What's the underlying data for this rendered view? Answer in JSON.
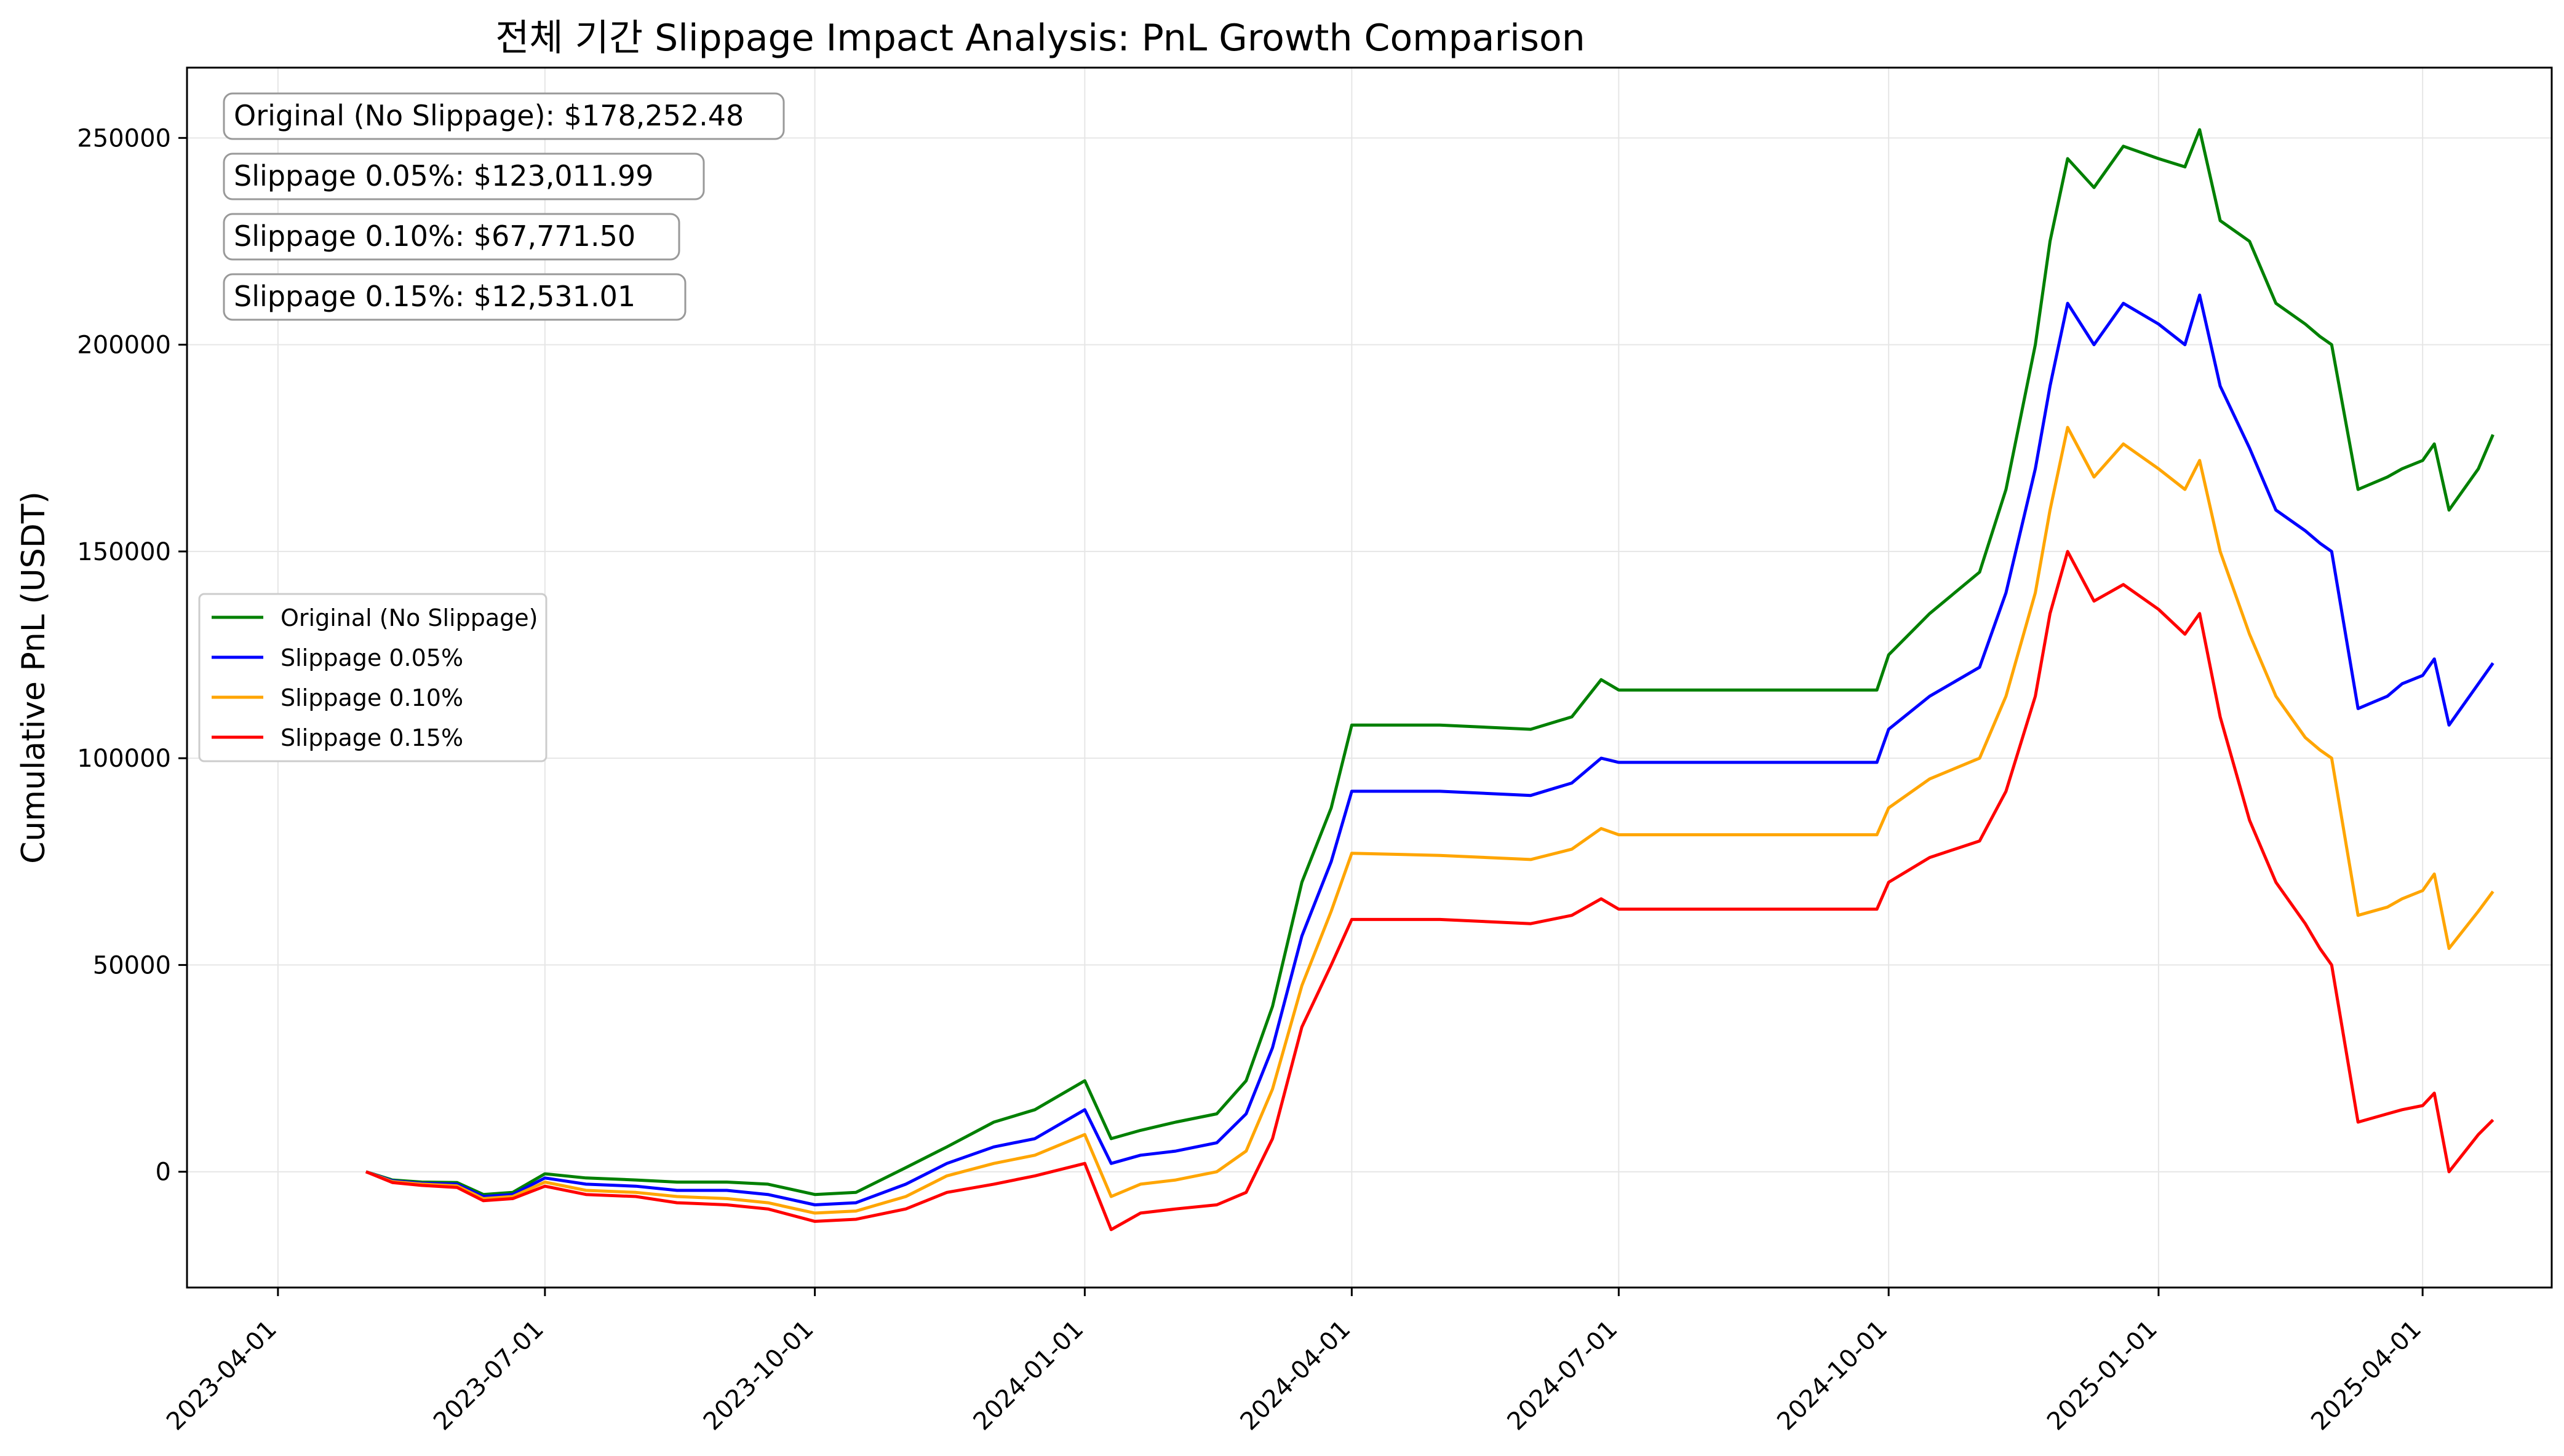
{
  "chart_data": {
    "type": "line",
    "title": "전체 기간 Slippage Impact Analysis: PnL Growth Comparison",
    "xlabel": "",
    "ylabel": "Cumulative PnL (USDT)",
    "x_ticks": [
      "2023-04-01",
      "2023-07-01",
      "2023-10-01",
      "2024-01-01",
      "2024-04-01",
      "2024-07-01",
      "2024-10-01",
      "2025-01-01",
      "2025-04-01"
    ],
    "y_ticks": [
      0,
      50000,
      100000,
      150000,
      200000,
      250000
    ],
    "y_tick_labels": [
      "0",
      "50000",
      "100000",
      "150000",
      "200000",
      "250000"
    ],
    "xlim": [
      "2023-03-01",
      "2025-05-15"
    ],
    "ylim": [
      -28000,
      267000
    ],
    "grid": true,
    "legend_position": "center-left",
    "annotations": [
      "Original (No Slippage): $178,252.48",
      "Slippage 0.05%: $123,011.99",
      "Slippage 0.10%: $67,771.50",
      "Slippage 0.15%: $12,531.01"
    ],
    "series": [
      {
        "name": "Original (No Slippage)",
        "color": "#008000",
        "x": [
          "2023-05-01",
          "2023-05-10",
          "2023-05-20",
          "2023-06-01",
          "2023-06-10",
          "2023-06-20",
          "2023-07-01",
          "2023-07-15",
          "2023-08-01",
          "2023-08-15",
          "2023-09-01",
          "2023-09-15",
          "2023-10-01",
          "2023-10-15",
          "2023-11-01",
          "2023-11-15",
          "2023-12-01",
          "2023-12-15",
          "2024-01-01",
          "2024-01-10",
          "2024-01-20",
          "2024-02-01",
          "2024-02-15",
          "2024-02-25",
          "2024-03-05",
          "2024-03-15",
          "2024-03-25",
          "2024-04-01",
          "2024-05-01",
          "2024-06-01",
          "2024-06-15",
          "2024-06-25",
          "2024-07-01",
          "2024-08-01",
          "2024-09-01",
          "2024-09-27",
          "2024-10-01",
          "2024-10-15",
          "2024-11-01",
          "2024-11-10",
          "2024-11-20",
          "2024-11-25",
          "2024-12-01",
          "2024-12-10",
          "2024-12-20",
          "2025-01-01",
          "2025-01-10",
          "2025-01-15",
          "2025-01-22",
          "2025-02-01",
          "2025-02-10",
          "2025-02-20",
          "2025-02-25",
          "2025-03-01",
          "2025-03-10",
          "2025-03-20",
          "2025-03-25",
          "2025-04-01",
          "2025-04-05",
          "2025-04-10",
          "2025-04-20",
          "2025-04-25"
        ],
        "values": [
          0,
          -2000,
          -2500,
          -2600,
          -5500,
          -5000,
          -500,
          -1500,
          -2000,
          -2500,
          -2500,
          -3000,
          -5500,
          -5000,
          1000,
          6000,
          12000,
          15000,
          22000,
          8000,
          10000,
          12000,
          14000,
          22000,
          40000,
          70000,
          88000,
          108000,
          108000,
          107000,
          110000,
          119000,
          116500,
          116500,
          116500,
          116500,
          125000,
          135000,
          145000,
          165000,
          200000,
          225000,
          245000,
          238000,
          248000,
          245000,
          243000,
          252000,
          230000,
          225000,
          210000,
          205000,
          202000,
          200000,
          165000,
          168000,
          170000,
          172000,
          176000,
          160000,
          170000,
          178252
        ]
      },
      {
        "name": "Slippage 0.05%",
        "color": "#0000ff",
        "x": [
          "2023-05-01",
          "2023-05-10",
          "2023-05-20",
          "2023-06-01",
          "2023-06-10",
          "2023-06-20",
          "2023-07-01",
          "2023-07-15",
          "2023-08-01",
          "2023-08-15",
          "2023-09-01",
          "2023-09-15",
          "2023-10-01",
          "2023-10-15",
          "2023-11-01",
          "2023-11-15",
          "2023-12-01",
          "2023-12-15",
          "2024-01-01",
          "2024-01-10",
          "2024-01-20",
          "2024-02-01",
          "2024-02-15",
          "2024-02-25",
          "2024-03-05",
          "2024-03-15",
          "2024-03-25",
          "2024-04-01",
          "2024-05-01",
          "2024-06-01",
          "2024-06-15",
          "2024-06-25",
          "2024-07-01",
          "2024-08-01",
          "2024-09-01",
          "2024-09-27",
          "2024-10-01",
          "2024-10-15",
          "2024-11-01",
          "2024-11-10",
          "2024-11-20",
          "2024-11-25",
          "2024-12-01",
          "2024-12-10",
          "2024-12-20",
          "2025-01-01",
          "2025-01-10",
          "2025-01-15",
          "2025-01-22",
          "2025-02-01",
          "2025-02-10",
          "2025-02-20",
          "2025-02-25",
          "2025-03-01",
          "2025-03-10",
          "2025-03-20",
          "2025-03-25",
          "2025-04-01",
          "2025-04-05",
          "2025-04-10",
          "2025-04-20",
          "2025-04-25"
        ],
        "values": [
          0,
          -2200,
          -2800,
          -3000,
          -6000,
          -5500,
          -1500,
          -3000,
          -3500,
          -4500,
          -4500,
          -5500,
          -8000,
          -7500,
          -3000,
          2000,
          6000,
          8000,
          15000,
          2000,
          4000,
          5000,
          7000,
          14000,
          30000,
          57000,
          75000,
          92000,
          92000,
          91000,
          94000,
          100000,
          99000,
          99000,
          99000,
          99000,
          107000,
          115000,
          122000,
          140000,
          170000,
          190000,
          210000,
          200000,
          210000,
          205000,
          200000,
          212000,
          190000,
          175000,
          160000,
          155000,
          152000,
          150000,
          112000,
          115000,
          118000,
          120000,
          124000,
          108000,
          118000,
          123012
        ]
      },
      {
        "name": "Slippage 0.10%",
        "color": "#ffa500",
        "x": [
          "2023-05-01",
          "2023-05-10",
          "2023-05-20",
          "2023-06-01",
          "2023-06-10",
          "2023-06-20",
          "2023-07-01",
          "2023-07-15",
          "2023-08-01",
          "2023-08-15",
          "2023-09-01",
          "2023-09-15",
          "2023-10-01",
          "2023-10-15",
          "2023-11-01",
          "2023-11-15",
          "2023-12-01",
          "2023-12-15",
          "2024-01-01",
          "2024-01-10",
          "2024-01-20",
          "2024-02-01",
          "2024-02-15",
          "2024-02-25",
          "2024-03-05",
          "2024-03-15",
          "2024-03-25",
          "2024-04-01",
          "2024-05-01",
          "2024-06-01",
          "2024-06-15",
          "2024-06-25",
          "2024-07-01",
          "2024-08-01",
          "2024-09-01",
          "2024-09-27",
          "2024-10-01",
          "2024-10-15",
          "2024-11-01",
          "2024-11-10",
          "2024-11-20",
          "2024-11-25",
          "2024-12-01",
          "2024-12-10",
          "2024-12-20",
          "2025-01-01",
          "2025-01-10",
          "2025-01-15",
          "2025-01-22",
          "2025-02-01",
          "2025-02-10",
          "2025-02-20",
          "2025-02-25",
          "2025-03-01",
          "2025-03-10",
          "2025-03-20",
          "2025-03-25",
          "2025-04-01",
          "2025-04-05",
          "2025-04-10",
          "2025-04-20",
          "2025-04-25"
        ],
        "values": [
          0,
          -2400,
          -3000,
          -3400,
          -6500,
          -6000,
          -2500,
          -4500,
          -5000,
          -6000,
          -6500,
          -7500,
          -10000,
          -9500,
          -6000,
          -1000,
          2000,
          4000,
          9000,
          -6000,
          -3000,
          -2000,
          0,
          5000,
          20000,
          45000,
          63000,
          77000,
          76500,
          75500,
          78000,
          83000,
          81500,
          81500,
          81500,
          81500,
          88000,
          95000,
          100000,
          115000,
          140000,
          160000,
          180000,
          168000,
          176000,
          170000,
          165000,
          172000,
          150000,
          130000,
          115000,
          105000,
          102000,
          100000,
          62000,
          64000,
          66000,
          68000,
          72000,
          54000,
          63000,
          67772
        ]
      },
      {
        "name": "Slippage 0.15%",
        "color": "#ff0000",
        "x": [
          "2023-05-01",
          "2023-05-10",
          "2023-05-20",
          "2023-06-01",
          "2023-06-10",
          "2023-06-20",
          "2023-07-01",
          "2023-07-15",
          "2023-08-01",
          "2023-08-15",
          "2023-09-01",
          "2023-09-15",
          "2023-10-01",
          "2023-10-15",
          "2023-11-01",
          "2023-11-15",
          "2023-12-01",
          "2023-12-15",
          "2024-01-01",
          "2024-01-10",
          "2024-01-20",
          "2024-02-01",
          "2024-02-15",
          "2024-02-25",
          "2024-03-05",
          "2024-03-15",
          "2024-03-25",
          "2024-04-01",
          "2024-05-01",
          "2024-06-01",
          "2024-06-15",
          "2024-06-25",
          "2024-07-01",
          "2024-08-01",
          "2024-09-01",
          "2024-09-27",
          "2024-10-01",
          "2024-10-15",
          "2024-11-01",
          "2024-11-10",
          "2024-11-20",
          "2024-11-25",
          "2024-12-01",
          "2024-12-10",
          "2024-12-20",
          "2025-01-01",
          "2025-01-10",
          "2025-01-15",
          "2025-01-22",
          "2025-02-01",
          "2025-02-10",
          "2025-02-20",
          "2025-02-25",
          "2025-03-01",
          "2025-03-10",
          "2025-03-20",
          "2025-03-25",
          "2025-04-01",
          "2025-04-05",
          "2025-04-10",
          "2025-04-20",
          "2025-04-25"
        ],
        "values": [
          0,
          -2600,
          -3300,
          -3800,
          -7000,
          -6500,
          -3500,
          -5500,
          -6000,
          -7500,
          -8000,
          -9000,
          -12000,
          -11500,
          -9000,
          -5000,
          -3000,
          -1000,
          2000,
          -14000,
          -10000,
          -9000,
          -8000,
          -5000,
          8000,
          35000,
          50000,
          61000,
          61000,
          60000,
          62000,
          66000,
          63500,
          63500,
          63500,
          63500,
          70000,
          76000,
          80000,
          92000,
          115000,
          135000,
          150000,
          138000,
          142000,
          136000,
          130000,
          135000,
          110000,
          85000,
          70000,
          60000,
          54000,
          50000,
          12000,
          14000,
          15000,
          16000,
          19000,
          0,
          9000,
          12531
        ]
      }
    ]
  }
}
